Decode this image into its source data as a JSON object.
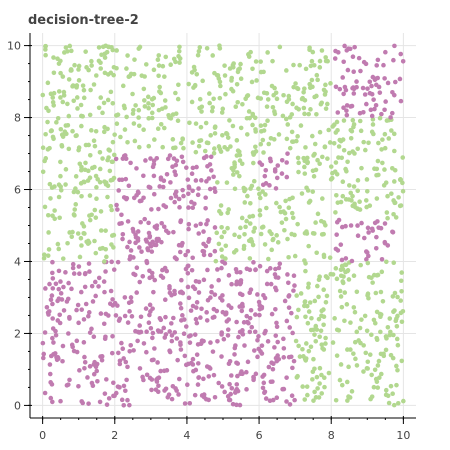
{
  "chart_data": {
    "type": "scatter",
    "title": "decision-tree-2",
    "xlabel": "",
    "ylabel": "",
    "xlim": [
      -0.35,
      10.35
    ],
    "ylim": [
      -0.35,
      10.35
    ],
    "x_ticks": [
      0,
      2,
      4,
      6,
      8,
      10
    ],
    "y_ticks": [
      0,
      2,
      4,
      6,
      8,
      10
    ],
    "x_minor_step": 0.5,
    "y_minor_step": 0.5,
    "grid": true,
    "legend": "none",
    "classes": {
      "A": {
        "color": "#b2d88f"
      },
      "B": {
        "color": "#c07bb0"
      }
    },
    "decision_regions": [
      {
        "x": [
          0,
          7
        ],
        "y": [
          0,
          4
        ],
        "class": "B"
      },
      {
        "x": [
          7,
          10
        ],
        "y": [
          0,
          4
        ],
        "class": "A"
      },
      {
        "x": [
          0,
          2
        ],
        "y": [
          4,
          10
        ],
        "class": "A"
      },
      {
        "x": [
          2,
          4.8
        ],
        "y": [
          4,
          7
        ],
        "class": "B"
      },
      {
        "x": [
          4.8,
          6
        ],
        "y": [
          4,
          7
        ],
        "class": "A"
      },
      {
        "x": [
          6,
          6.8
        ],
        "y": [
          6,
          7
        ],
        "class": "B"
      },
      {
        "x": [
          6,
          6.8
        ],
        "y": [
          4,
          6
        ],
        "class": "A"
      },
      {
        "x": [
          2,
          6.8
        ],
        "y": [
          7,
          10
        ],
        "class": "A"
      },
      {
        "x": [
          6.8,
          8
        ],
        "y": [
          4,
          10
        ],
        "class": "A"
      },
      {
        "x": [
          8,
          10
        ],
        "y": [
          4,
          5.2
        ],
        "class": "B"
      },
      {
        "x": [
          8,
          10
        ],
        "y": [
          5.2,
          8
        ],
        "class": "A"
      },
      {
        "x": [
          8,
          10
        ],
        "y": [
          8,
          10
        ],
        "class": "B"
      }
    ],
    "n_points": 1900,
    "x_range": [
      0,
      10
    ],
    "y_range": [
      0,
      10
    ]
  }
}
